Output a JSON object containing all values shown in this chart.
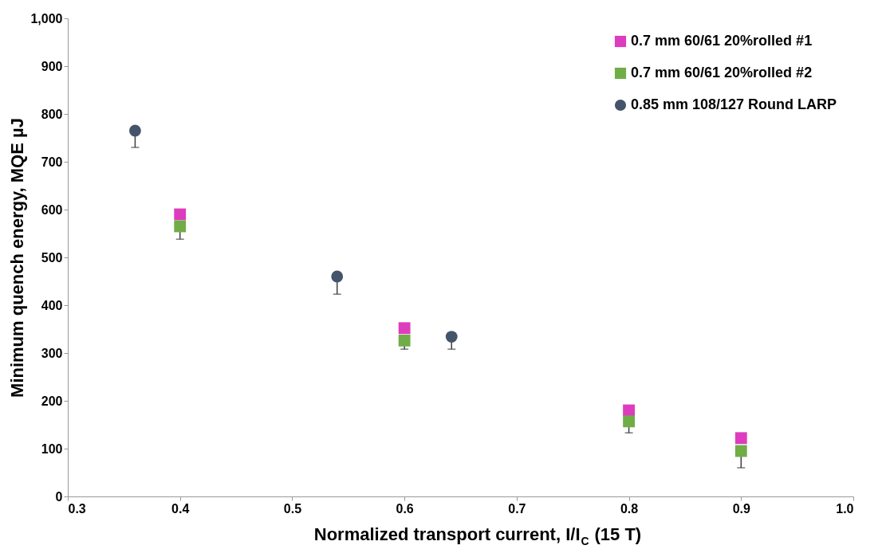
{
  "chart_data": {
    "type": "scatter",
    "xlabel": "Normalized transport current, I/I$_{C}$ (15 T)",
    "ylabel": "Minimum quench energy, MQE µJ",
    "xlim": [
      0.3,
      1.0
    ],
    "xticks": [
      0.3,
      0.4,
      0.5,
      0.6,
      0.7,
      0.8,
      0.9,
      {
        "value": 1.0,
        "label": "1.0"
      }
    ],
    "ylim": [
      0,
      1000
    ],
    "yticks": [
      0,
      100,
      200,
      300,
      400,
      500,
      600,
      700,
      800,
      900,
      {
        "value": 1000,
        "label": "1,000"
      }
    ],
    "grid": false,
    "legend": "top right",
    "series": [
      {
        "name": "0.7 mm 60/61 20%rolled #1",
        "color": "#dd3cbf",
        "marker": "square",
        "x": [
          0.4,
          0.6,
          0.8,
          0.9
        ],
        "values": [
          590,
          352,
          180,
          122
        ]
      },
      {
        "name": "0.7 mm 60/61 20%rolled #2",
        "color": "#70ad47",
        "marker": "square",
        "x": [
          0.4,
          0.6,
          0.8,
          0.9
        ],
        "values": [
          565,
          326,
          157,
          95
        ],
        "errors": [
          [
            538,
            565
          ],
          [
            308,
            326
          ],
          [
            133,
            157
          ],
          [
            60,
            95
          ]
        ]
      },
      {
        "name": "0.85 mm 108/127 Round LARP",
        "color": "#44546a",
        "marker": "circle",
        "x": [
          0.36,
          0.54,
          0.642
        ],
        "values": [
          765,
          460,
          334
        ],
        "errors": [
          [
            730,
            765
          ],
          [
            423,
            460
          ],
          [
            308,
            334
          ]
        ]
      }
    ]
  }
}
